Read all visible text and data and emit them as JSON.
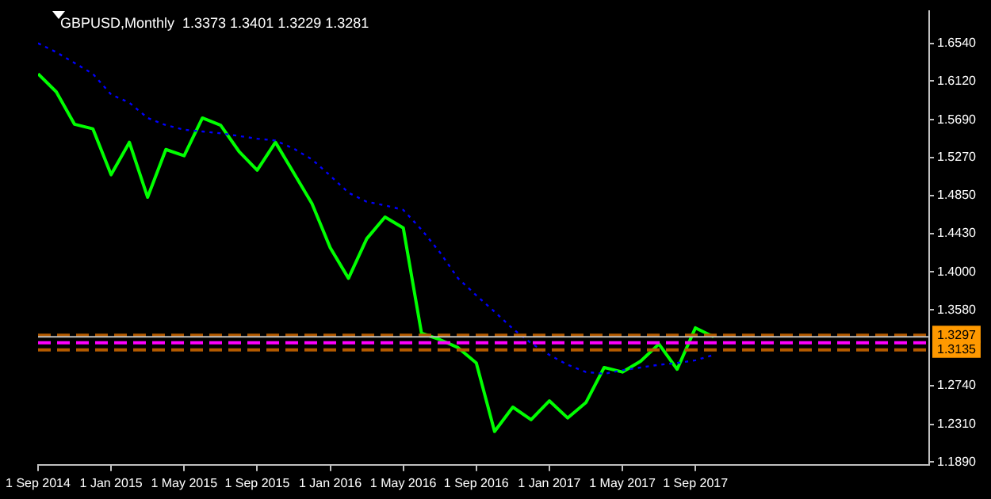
{
  "chart_data": {
    "type": "line",
    "title": "GBPUSD,Monthly  1.3373 1.3401 1.3229 1.3281",
    "x": [
      "2014-09",
      "2014-10",
      "2014-11",
      "2014-12",
      "2015-01",
      "2015-02",
      "2015-03",
      "2015-04",
      "2015-05",
      "2015-06",
      "2015-07",
      "2015-08",
      "2015-09",
      "2015-10",
      "2015-11",
      "2015-12",
      "2016-01",
      "2016-02",
      "2016-03",
      "2016-04",
      "2016-05",
      "2016-06",
      "2016-07",
      "2016-08",
      "2016-09",
      "2016-10",
      "2016-11",
      "2016-12",
      "2017-01",
      "2017-02",
      "2017-03",
      "2017-04",
      "2017-05",
      "2017-06",
      "2017-07",
      "2017-08",
      "2017-09",
      "2017-10"
    ],
    "series": [
      {
        "color": "#0000ff",
        "line_style": "dotted",
        "values": [
          1.654,
          1.644,
          1.632,
          1.62,
          1.597,
          1.588,
          1.571,
          1.563,
          1.558,
          1.556,
          1.554,
          1.551,
          1.548,
          1.546,
          1.537,
          1.525,
          1.507,
          1.488,
          1.478,
          1.474,
          1.469,
          1.447,
          1.422,
          1.393,
          1.374,
          1.356,
          1.337,
          1.321,
          1.308,
          1.297,
          1.289,
          1.287,
          1.291,
          1.294,
          1.297,
          1.299,
          1.302,
          1.308
        ]
      },
      {
        "color": "#00ff00",
        "line_style": "solid",
        "values": [
          1.62,
          1.6,
          1.564,
          1.559,
          1.508,
          1.544,
          1.483,
          1.536,
          1.529,
          1.571,
          1.563,
          1.534,
          1.513,
          1.544,
          1.51,
          1.476,
          1.427,
          1.393,
          1.437,
          1.461,
          1.449,
          1.332,
          1.325,
          1.316,
          1.299,
          1.223,
          1.25,
          1.236,
          1.257,
          1.238,
          1.255,
          1.294,
          1.289,
          1.301,
          1.32,
          1.292,
          1.338,
          1.328
        ]
      }
    ],
    "xlim": [
      "2014-09-01",
      "2018-09-25"
    ],
    "xticks": [
      {
        "value": "2014-09-01",
        "label": "1 Sep 2014"
      },
      {
        "value": "2015-01-01",
        "label": "1 Jan 2015"
      },
      {
        "value": "2015-05-01",
        "label": "1 May 2015"
      },
      {
        "value": "2015-09-01",
        "label": "1 Sep 2015"
      },
      {
        "value": "2016-01-01",
        "label": "1 Jan 2016"
      },
      {
        "value": "2016-05-01",
        "label": "1 May 2016"
      },
      {
        "value": "2016-09-01",
        "label": "1 Sep 2016"
      },
      {
        "value": "2017-01-01",
        "label": "1 Jan 2017"
      },
      {
        "value": "2017-05-01",
        "label": "1 May 2017"
      },
      {
        "value": "2017-09-01",
        "label": "1 Sep 2017"
      }
    ],
    "ylim": [
      1.186,
      1.69
    ],
    "yticks": [
      {
        "value": 1.654,
        "label": "1.6540"
      },
      {
        "value": 1.612,
        "label": "1.6120"
      },
      {
        "value": 1.569,
        "label": "1.5690"
      },
      {
        "value": 1.527,
        "label": "1.5270"
      },
      {
        "value": 1.485,
        "label": "1.4850"
      },
      {
        "value": 1.443,
        "label": "1.4430"
      },
      {
        "value": 1.4,
        "label": "1.4000"
      },
      {
        "value": 1.358,
        "label": "1.3580"
      },
      {
        "value": 1.274,
        "label": "1.2740"
      },
      {
        "value": 1.231,
        "label": "1.2310"
      },
      {
        "value": 1.189,
        "label": "1.1890"
      }
    ],
    "ref_lines": [
      {
        "axis": "y",
        "value": 1.3297,
        "label": "1.3297",
        "color": "#b35a00",
        "line_style": "dashed"
      },
      {
        "axis": "y",
        "value": 1.3281,
        "label": null,
        "color": "#c0c0c0",
        "line_style": "solid"
      },
      {
        "axis": "y",
        "value": 1.3215,
        "label": null,
        "color": "#ff00ff",
        "line_style": "dashed"
      },
      {
        "axis": "y",
        "value": 1.3135,
        "label": "1.3135",
        "color": "#b35a00",
        "line_style": "dashed"
      }
    ],
    "grid": false,
    "legend": false,
    "marker": "none"
  }
}
